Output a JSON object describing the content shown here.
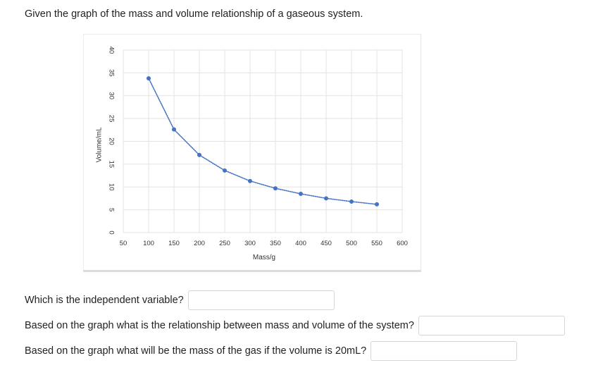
{
  "prompt": "Given the graph of the mass and volume relationship of a gaseous system.",
  "chart_data": {
    "type": "scatter",
    "title": "",
    "xlabel": "Mass/g",
    "ylabel": "Volume/mL",
    "xlim": [
      50,
      600
    ],
    "ylim": [
      0,
      40
    ],
    "x_ticks": [
      50,
      100,
      150,
      200,
      250,
      300,
      350,
      400,
      450,
      500,
      550,
      600
    ],
    "y_ticks": [
      0,
      5,
      10,
      15,
      20,
      25,
      30,
      35,
      40
    ],
    "grid": true,
    "trendline": "dotted",
    "series": [
      {
        "points": [
          {
            "x": 100,
            "y": 33.8
          },
          {
            "x": 150,
            "y": 22.6
          },
          {
            "x": 200,
            "y": 17
          },
          {
            "x": 250,
            "y": 13.6
          },
          {
            "x": 300,
            "y": 11.3
          },
          {
            "x": 350,
            "y": 9.7
          },
          {
            "x": 400,
            "y": 8.5
          },
          {
            "x": 450,
            "y": 7.5
          },
          {
            "x": 500,
            "y": 6.8
          },
          {
            "x": 550,
            "y": 6.2
          }
        ],
        "color": "#4472c4"
      }
    ]
  },
  "questions": [
    {
      "label": "Which is the independent variable?",
      "value": ""
    },
    {
      "label": "Based on the graph what is the relationship between  mass and volume of the system?",
      "value": ""
    },
    {
      "label": "Based on the graph what will be the mass of the gas if the volume is 20mL?",
      "value": ""
    }
  ]
}
